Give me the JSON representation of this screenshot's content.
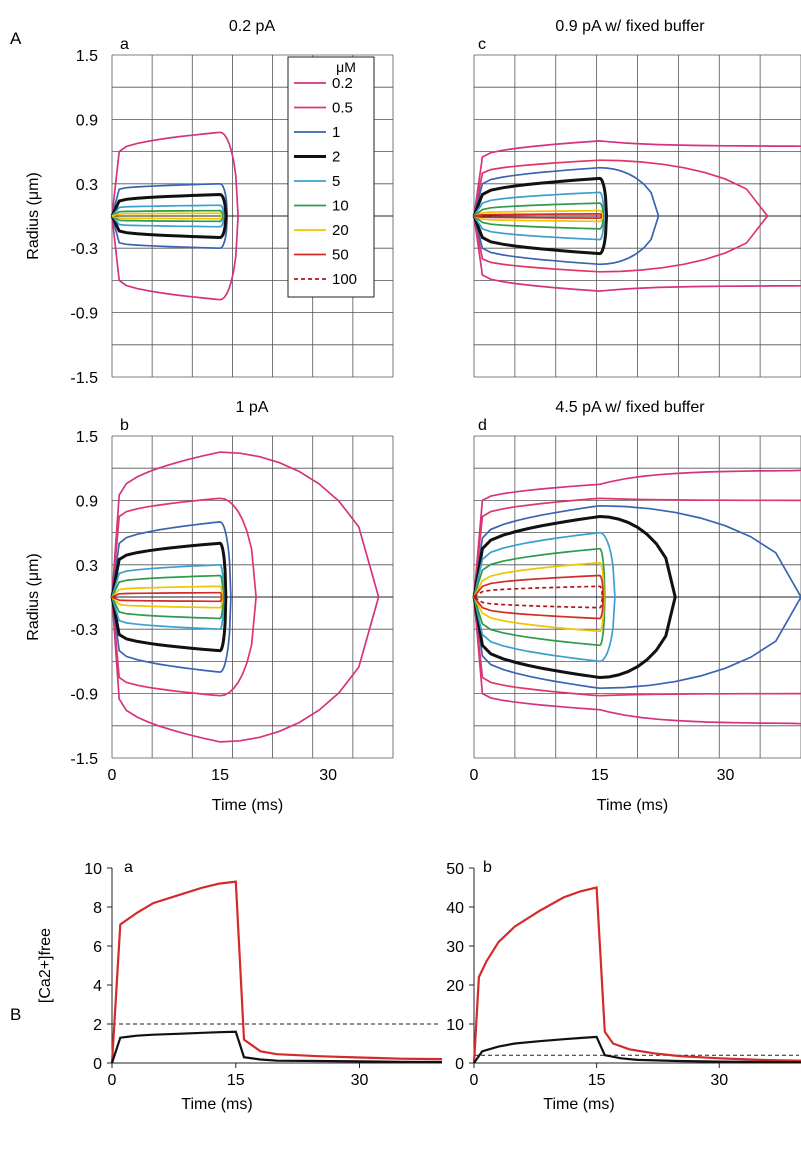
{
  "figure": {
    "panel_A_label": "A",
    "panel_B_label": "B"
  },
  "legend": {
    "unit": "μM",
    "entries": [
      {
        "label": "0.2",
        "color": "#d6337f",
        "style": "solid"
      },
      {
        "label": "0.5",
        "color": "#e0356a",
        "style": "solid"
      },
      {
        "label": "1",
        "color": "#3a63b4",
        "style": "solid"
      },
      {
        "label": "2",
        "color": "#111111",
        "style": "solid-bold"
      },
      {
        "label": "5",
        "color": "#3aa0d0",
        "style": "solid"
      },
      {
        "label": "10",
        "color": "#2e9a4a",
        "style": "solid"
      },
      {
        "label": "20",
        "color": "#f0c400",
        "style": "solid"
      },
      {
        "label": "50",
        "color": "#d42a2a",
        "style": "solid"
      },
      {
        "label": "100",
        "color": "#b01818",
        "style": "dashed"
      }
    ]
  },
  "chart_data": [
    {
      "type": "line",
      "panel": "a",
      "title": "0.2 pA",
      "xlabel": "",
      "ylabel": "Radius (μm)",
      "xlim": [
        0,
        39
      ],
      "ylim": [
        -1.5,
        1.5
      ],
      "yticks": [
        "1.5",
        "0.9",
        "0.3",
        "-0.3",
        "-0.9",
        "-1.5"
      ],
      "xticks": [],
      "grid": true,
      "contours": [
        {
          "level": "0.2",
          "r_on": 0.6,
          "r_end": 0.78,
          "t_close": 17.5
        },
        {
          "level": "1",
          "r_on": 0.25,
          "r_end": 0.3,
          "t_close": 16.0
        },
        {
          "level": "2",
          "r_on": 0.14,
          "r_end": 0.2,
          "t_close": 15.8
        },
        {
          "level": "5",
          "r_on": 0.08,
          "r_end": 0.1,
          "t_close": 15.5
        },
        {
          "level": "10",
          "r_on": 0.04,
          "r_end": 0.05,
          "t_close": 15.3
        },
        {
          "level": "20",
          "r_on": 0.02,
          "r_end": 0.025,
          "t_close": 15.2
        }
      ]
    },
    {
      "type": "line",
      "panel": "c",
      "title": "0.9 pA w/ fixed buffer",
      "xlabel": "",
      "ylabel": "",
      "xlim": [
        0,
        39
      ],
      "ylim": [
        -1.5,
        1.5
      ],
      "yticks": [],
      "xticks": [],
      "grid": true,
      "contours": [
        {
          "level": "0.2",
          "r_on": 0.55,
          "r_end": 0.7,
          "t_close": 15.2,
          "tail_end": 0.65
        },
        {
          "level": "0.5",
          "r_on": 0.4,
          "r_end": 0.52,
          "t_close": 35.0
        },
        {
          "level": "1",
          "r_on": 0.3,
          "r_end": 0.45,
          "t_close": 22.0
        },
        {
          "level": "2",
          "r_on": 0.2,
          "r_end": 0.35,
          "t_close": 15.8
        },
        {
          "level": "5",
          "r_on": 0.12,
          "r_end": 0.22,
          "t_close": 15.5
        },
        {
          "level": "10",
          "r_on": 0.06,
          "r_end": 0.12,
          "t_close": 15.4
        },
        {
          "level": "20",
          "r_on": 0.03,
          "r_end": 0.05,
          "t_close": 15.3
        },
        {
          "level": "50",
          "r_on": 0.01,
          "r_end": 0.02,
          "t_close": 15.2
        }
      ]
    },
    {
      "type": "line",
      "panel": "b",
      "title": "1 pA",
      "xlabel": "Time (ms)",
      "ylabel": "Radius (μm)",
      "xlim": [
        0,
        39
      ],
      "ylim": [
        -1.5,
        1.5
      ],
      "yticks": [
        "1.5",
        "0.9",
        "0.3",
        "-0.3",
        "-0.9",
        "-1.5"
      ],
      "xticks": [
        "0",
        "15",
        "30"
      ],
      "grid": true,
      "contours": [
        {
          "level": "0.2",
          "r_on": 0.95,
          "r_end": 1.35,
          "t_close": 37.0
        },
        {
          "level": "0.5",
          "r_on": 0.75,
          "r_end": 0.92,
          "t_close": 20.0
        },
        {
          "level": "1",
          "r_on": 0.5,
          "r_end": 0.7,
          "t_close": 16.5
        },
        {
          "level": "2",
          "r_on": 0.35,
          "r_end": 0.5,
          "t_close": 15.8
        },
        {
          "level": "5",
          "r_on": 0.22,
          "r_end": 0.3,
          "t_close": 15.5
        },
        {
          "level": "10",
          "r_on": 0.14,
          "r_end": 0.2,
          "t_close": 15.4
        },
        {
          "level": "20",
          "r_on": 0.07,
          "r_end": 0.1,
          "t_close": 15.3
        },
        {
          "level": "50",
          "r_on": 0.03,
          "r_end": 0.04,
          "t_close": 15.2
        }
      ]
    },
    {
      "type": "line",
      "panel": "d",
      "title": "4.5 pA w/ fixed buffer",
      "xlabel": "Time (ms)",
      "ylabel": "",
      "xlim": [
        0,
        39
      ],
      "ylim": [
        -1.5,
        1.5
      ],
      "yticks": [],
      "xticks": [
        "0",
        "15",
        "30"
      ],
      "grid": true,
      "contours": [
        {
          "level": "0.2",
          "r_on": 0.9,
          "r_end": 1.05,
          "t_close": 15.2,
          "tail_end": 1.18
        },
        {
          "level": "0.5",
          "r_on": 0.75,
          "r_end": 0.92,
          "t_close": 15.2,
          "tail_end": 0.9
        },
        {
          "level": "1",
          "r_on": 0.55,
          "r_end": 0.85,
          "t_close": 39.0
        },
        {
          "level": "2",
          "r_on": 0.45,
          "r_end": 0.75,
          "t_close": 24.0
        },
        {
          "level": "5",
          "r_on": 0.35,
          "r_end": 0.6,
          "t_close": 16.8
        },
        {
          "level": "10",
          "r_on": 0.25,
          "r_end": 0.45,
          "t_close": 15.6
        },
        {
          "level": "20",
          "r_on": 0.15,
          "r_end": 0.32,
          "t_close": 15.5
        },
        {
          "level": "50",
          "r_on": 0.1,
          "r_end": 0.2,
          "t_close": 15.4
        },
        {
          "level": "100",
          "r_on": 0.05,
          "r_end": 0.1,
          "t_close": 15.3
        }
      ]
    },
    {
      "type": "line",
      "panel": "B-a",
      "title": "",
      "xlabel": "Time (ms)",
      "ylabel": "[Ca2+]free",
      "xlim": [
        0,
        40
      ],
      "ylim": [
        0,
        10
      ],
      "yticks": [
        "0",
        "2",
        "4",
        "6",
        "8",
        "10"
      ],
      "xticks": [
        "0",
        "15",
        "30"
      ],
      "grid": false,
      "threshold": 2,
      "series": [
        {
          "color": "#d42a2a",
          "x": [
            0,
            1,
            3,
            5,
            8,
            11,
            13,
            15,
            16,
            18,
            20,
            25,
            30,
            35,
            40
          ],
          "y": [
            0,
            7.1,
            7.7,
            8.2,
            8.6,
            9.0,
            9.2,
            9.3,
            1.2,
            0.6,
            0.45,
            0.35,
            0.28,
            0.22,
            0.2
          ]
        },
        {
          "color": "#111111",
          "x": [
            0,
            1,
            3,
            5,
            8,
            11,
            13,
            15,
            16,
            18,
            20,
            25,
            30,
            35,
            40
          ],
          "y": [
            0,
            1.3,
            1.4,
            1.45,
            1.5,
            1.55,
            1.58,
            1.6,
            0.3,
            0.18,
            0.12,
            0.1,
            0.08,
            0.06,
            0.05
          ]
        }
      ]
    },
    {
      "type": "line",
      "panel": "B-b",
      "title": "",
      "xlabel": "Time (ms)",
      "ylabel": "",
      "xlim": [
        0,
        40
      ],
      "ylim": [
        0,
        50
      ],
      "yticks": [
        "0",
        "10",
        "20",
        "30",
        "40",
        "50"
      ],
      "xticks": [
        "0",
        "15",
        "30"
      ],
      "grid": false,
      "threshold": 2,
      "series": [
        {
          "color": "#d42a2a",
          "x": [
            0,
            0.6,
            1.5,
            3,
            5,
            8,
            11,
            13,
            15,
            16,
            17,
            19,
            22,
            25,
            30,
            35,
            40
          ],
          "y": [
            0,
            22,
            26,
            31,
            35,
            39,
            42.5,
            44,
            45,
            8,
            5,
            3.5,
            2.5,
            1.8,
            1.2,
            0.8,
            0.6
          ]
        },
        {
          "color": "#111111",
          "x": [
            0,
            1,
            3,
            5,
            8,
            11,
            13,
            15,
            16,
            18,
            20,
            25,
            30,
            35,
            40
          ],
          "y": [
            0,
            3,
            4.2,
            5,
            5.6,
            6.1,
            6.4,
            6.7,
            2.0,
            1.2,
            0.8,
            0.5,
            0.35,
            0.25,
            0.2
          ]
        }
      ]
    }
  ]
}
